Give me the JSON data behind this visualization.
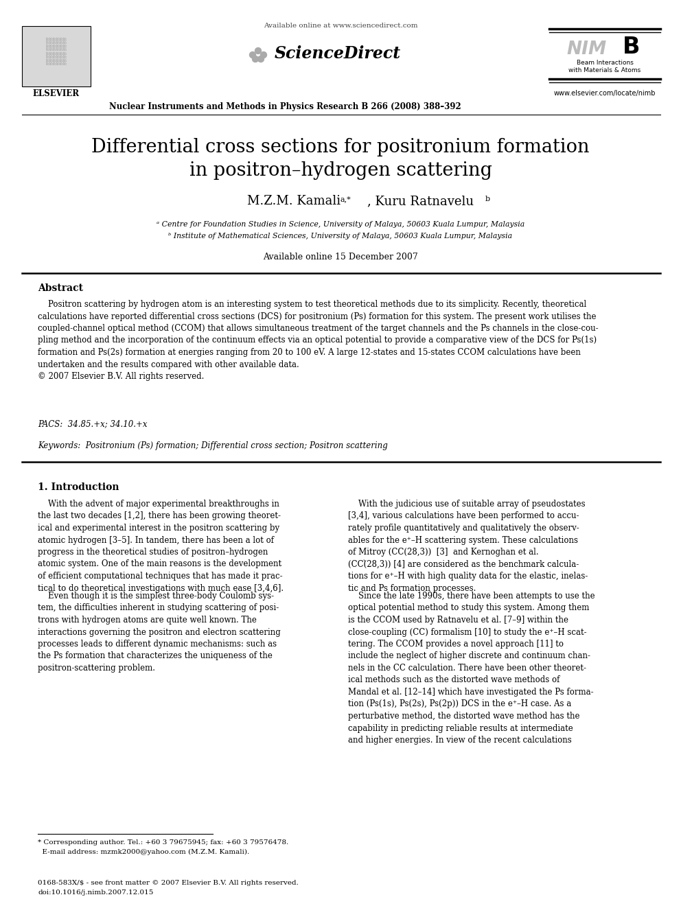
{
  "bg_color": "#ffffff",
  "header_line1": "Available online at www.sciencedirect.com",
  "journal_line": "Nuclear Instruments and Methods in Physics Research B 266 (2008) 388–392",
  "nimb_sub": "Beam Interactions\nwith Materials & Atoms",
  "nimb_url": "www.elsevier.com/locate/nimb",
  "title_line1": "Differential cross sections for positronium formation",
  "title_line2": "in positron–hydrogen scattering",
  "available_online": "Available online 15 December 2007",
  "abstract_header": "Abstract",
  "abstract_wrapped": "    Positron scattering by hydrogen atom is an interesting system to test theoretical methods due to its simplicity. Recently, theoretical\ncalculations have reported differential cross sections (DCS) for positronium (Ps) formation for this system. The present work utilises the\ncoupled-channel optical method (CCOM) that allows simultaneous treatment of the target channels and the Ps channels in the close-cou-\npling method and the incorporation of the continuum effects via an optical potential to provide a comparative view of the DCS for Ps(1s)\nformation and Ps(2s) formation at energies ranging from 20 to 100 eV. A large 12-states and 15-states CCOM calculations have been\nundertaken and the results compared with other available data.\n© 2007 Elsevier B.V. All rights reserved.",
  "pacs_text": "PACS:  34.85.+x; 34.10.+x",
  "keywords_text": "Keywords:  Positronium (Ps) formation; Differential cross section; Positron scattering",
  "intro_header": "1. Introduction",
  "col1p1": "    With the advent of major experimental breakthroughs in\nthe last two decades [1,2], there has been growing theoret-\nical and experimental interest in the positron scattering by\natomic hydrogen [3–5]. In tandem, there has been a lot of\nprogress in the theoretical studies of positron–hydrogen\natomic system. One of the main reasons is the development\nof efficient computational techniques that has made it prac-\ntical to do theoretical investigations with much ease [3,4,6].",
  "col1p2": "    Even though it is the simplest three-body Coulomb sys-\ntem, the difficulties inherent in studying scattering of posi-\ntrons with hydrogen atoms are quite well known. The\ninteractions governing the positron and electron scattering\nprocesses leads to different dynamic mechanisms: such as\nthe Ps formation that characterizes the uniqueness of the\npositron-scattering problem.",
  "col2p1": "    With the judicious use of suitable array of pseudostates\n[3,4], various calculations have been performed to accu-\nrately profile quantitatively and qualitatively the observ-\nables for the e⁺–H scattering system. These calculations\nof Mitroy (CC(28,3))  [3]  and Kernoghan et al.\n(CC(̀28,3)) [4] are considered as the benchmark calcula-\ntions for e⁺–H with high quality data for the elastic, inelas-\ntic and Ps formation processes.",
  "col2p2": "    Since the late 1990s, there have been attempts to use the\noptical potential method to study this system. Among them\nis the CCOM used by Ratnavelu et al. [7–9] within the\nclose-coupling (CC) formalism [10] to study the e⁺–H scat-\ntering. The CCOM provides a novel approach [11] to\ninclude the neglect of higher discrete and continuum chan-\nnels in the CC calculation. There have been other theoret-\nical methods such as the distorted wave methods of\nMandal et al. [12–14] which have investigated the Ps forma-\ntion (Ps(1s), Ps(2s), Ps(2p)) DCS in the e⁺–H case. As a\nperturbative method, the distorted wave method has the\ncapability in predicting reliable results at intermediate\nand higher energies. In view of the recent calculations",
  "footnote_line1": "* Corresponding author. Tel.: +60 3 79675945; fax: +60 3 79576478.",
  "footnote_line2": "  E-mail address: mzmk2000@yahoo.com (M.Z.M. Kamali).",
  "footer_line1": "0168-583X/$ - see front matter © 2007 Elsevier B.V. All rights reserved.",
  "footer_line2": "doi:10.1016/j.nimb.2007.12.015",
  "affil_a": "ᵃ Centre for Foundation Studies in Science, University of Malaya, 50603 Kuala Lumpur, Malaysia",
  "affil_b": "ᵇ Institute of Mathematical Sciences, University of Malaya, 50603 Kuala Lumpur, Malaysia"
}
